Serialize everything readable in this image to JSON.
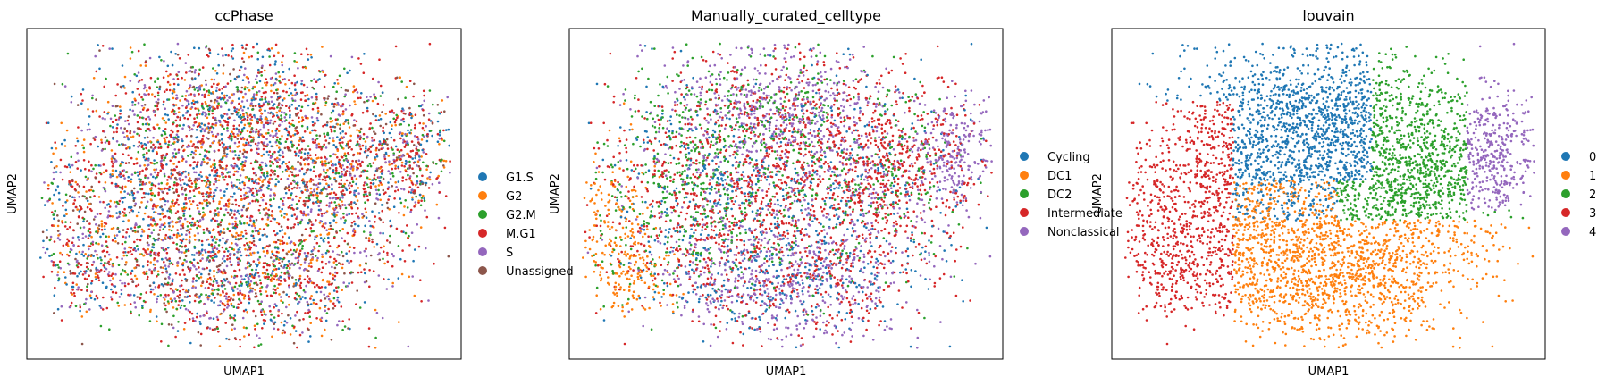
{
  "chart_data": [
    {
      "type": "scatter",
      "title": "ccPhase",
      "xlabel": "UMAP1",
      "ylabel": "UMAP2",
      "grid": false,
      "legend_position": "right",
      "legend": [
        {
          "label": "G1.S",
          "color": "#1f77b4"
        },
        {
          "label": "G2",
          "color": "#ff7f0e"
        },
        {
          "label": "G2.M",
          "color": "#2ca02c"
        },
        {
          "label": "M.G1",
          "color": "#d62728"
        },
        {
          "label": "S",
          "color": "#9467bd"
        },
        {
          "label": "Unassigned",
          "color": "#8c564b"
        }
      ]
    },
    {
      "type": "scatter",
      "title": "Manually_curated_celltype",
      "xlabel": "UMAP1",
      "ylabel": "UMAP2",
      "grid": false,
      "legend_position": "right",
      "legend": [
        {
          "label": "Cycling",
          "color": "#1f77b4"
        },
        {
          "label": "DC1",
          "color": "#ff7f0e"
        },
        {
          "label": "DC2",
          "color": "#2ca02c"
        },
        {
          "label": "Intermediate",
          "color": "#d62728"
        },
        {
          "label": "Nonclassical",
          "color": "#9467bd"
        }
      ]
    },
    {
      "type": "scatter",
      "title": "louvain",
      "xlabel": "UMAP1",
      "ylabel": "UMAP2",
      "grid": false,
      "legend_position": "right",
      "legend": [
        {
          "label": "0",
          "color": "#1f77b4"
        },
        {
          "label": "1",
          "color": "#ff7f0e"
        },
        {
          "label": "2",
          "color": "#2ca02c"
        },
        {
          "label": "3",
          "color": "#d62728"
        },
        {
          "label": "4",
          "color": "#9467bd"
        }
      ]
    }
  ]
}
